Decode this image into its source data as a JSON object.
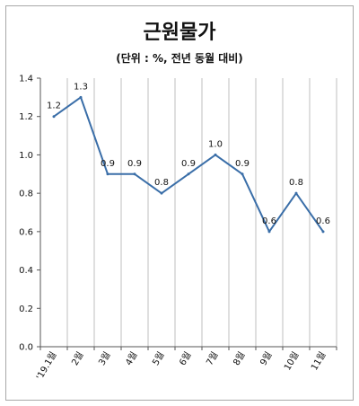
{
  "chart_data": {
    "type": "line",
    "title": "근원물가",
    "subtitle": "(단위 : %, 전년 동월 대비)",
    "categories": [
      "'19.1월",
      "2월",
      "3월",
      "4월",
      "5월",
      "6월",
      "7월",
      "8월",
      "9월",
      "10월",
      "11월"
    ],
    "series": [
      {
        "values": [
          1.2,
          1.3,
          0.9,
          0.9,
          0.8,
          0.9,
          1.0,
          0.9,
          0.6,
          0.8,
          0.6
        ],
        "data_labels": [
          "1.2",
          "1.3",
          "0.9",
          "0.9",
          "0.8",
          "0.9",
          "1.0",
          "0.9",
          "0.6",
          "0.8",
          "0.6"
        ],
        "color": "#3a6ea8"
      }
    ],
    "ylim": [
      0,
      1.4
    ],
    "yticks": [
      "0.0",
      "0.2",
      "0.4",
      "0.6",
      "0.8",
      "1.0",
      "1.2",
      "1.4"
    ],
    "grid": "vertical",
    "legend": "none"
  }
}
